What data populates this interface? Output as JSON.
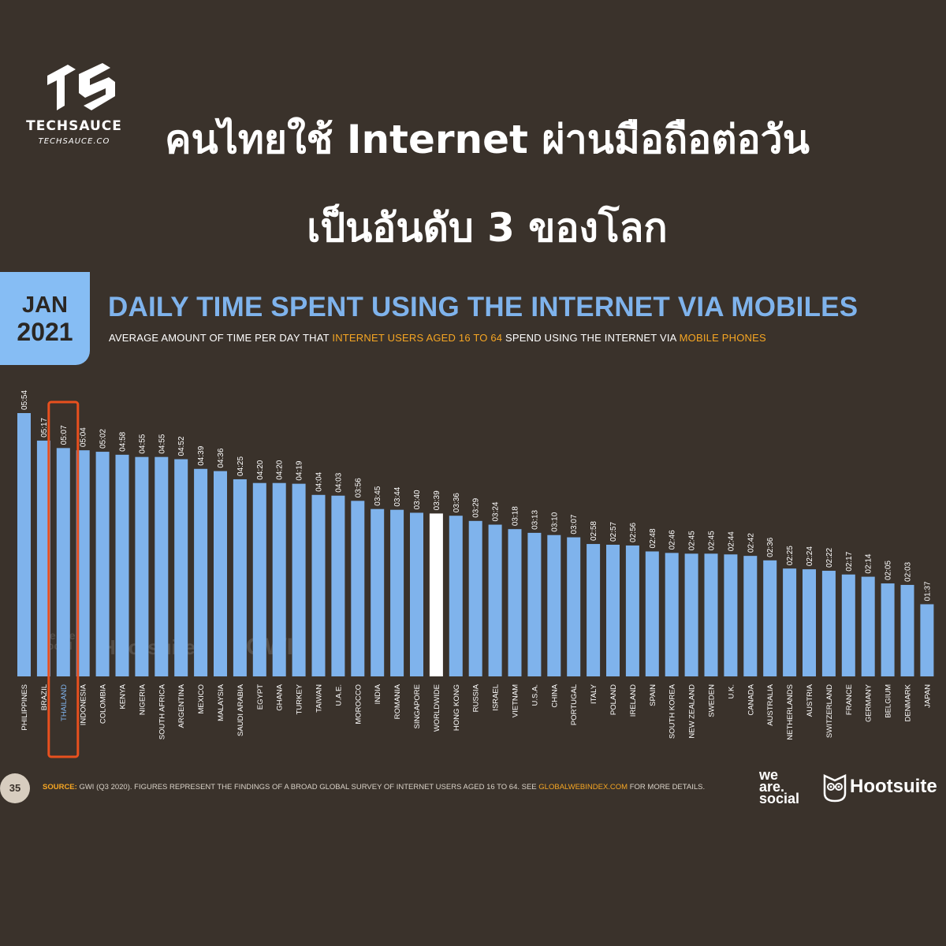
{
  "brand": {
    "name": "TECHSAUCE",
    "url": "TECHSAUCE.CO",
    "logo_icon": "techsauce-ts-logo"
  },
  "headline": {
    "line1": "คนไทยใช้ Internet ผ่านมือถือต่อวัน",
    "line2": "เป็นอันดับ 3 ของโลก"
  },
  "date_badge": {
    "month": "JAN",
    "year": "2021"
  },
  "chart_title": "DAILY TIME SPENT USING THE INTERNET VIA MOBILES",
  "chart_subtitle": {
    "part1": "AVERAGE AMOUNT OF TIME PER DAY THAT ",
    "highlight1": "INTERNET USERS AGED 16 TO 64",
    "part2": " SPEND USING THE INTERNET VIA ",
    "highlight2": "MOBILE PHONES"
  },
  "colors": {
    "background": "#3a322b",
    "bar": "#7fb3ec",
    "worldwide_bar": "#ffffff",
    "highlight_box": "#e8501e",
    "accent": "#f6a623",
    "badge": "#86bdf4"
  },
  "chart_data": {
    "type": "bar",
    "unit": "hh:mm",
    "categories": [
      "PHILIPPINES",
      "BRAZIL",
      "THAILAND",
      "INDONESIA",
      "COLOMBIA",
      "KENYA",
      "NIGERIA",
      "SOUTH AFRICA",
      "ARGENTINA",
      "MEXICO",
      "MALAYSIA",
      "SAUDI ARABIA",
      "EGYPT",
      "GHANA",
      "TURKEY",
      "TAIWAN",
      "U.A.E.",
      "MOROCCO",
      "INDIA",
      "ROMANIA",
      "SINGAPORE",
      "WORLDWIDE",
      "HONG KONG",
      "RUSSIA",
      "ISRAEL",
      "VIETNAM",
      "U.S.A.",
      "CHINA",
      "PORTUGAL",
      "ITALY",
      "POLAND",
      "IRELAND",
      "SPAIN",
      "SOUTH KOREA",
      "NEW ZEALAND",
      "SWEDEN",
      "U.K.",
      "CANADA",
      "AUSTRALIA",
      "NETHERLANDS",
      "AUSTRIA",
      "SWITZERLAND",
      "FRANCE",
      "GERMANY",
      "BELGIUM",
      "DENMARK",
      "JAPAN"
    ],
    "labels": [
      "05:54",
      "05:17",
      "05:07",
      "05:04",
      "05:02",
      "04:58",
      "04:55",
      "04:55",
      "04:52",
      "04:39",
      "04:36",
      "04:25",
      "04:20",
      "04:20",
      "04:19",
      "04:04",
      "04:03",
      "03:56",
      "03:45",
      "03:44",
      "03:40",
      "03:39",
      "03:36",
      "03:29",
      "03:24",
      "03:18",
      "03:13",
      "03:10",
      "03:07",
      "02:58",
      "02:57",
      "02:56",
      "02:48",
      "02:46",
      "02:45",
      "02:45",
      "02:44",
      "02:42",
      "02:36",
      "02:25",
      "02:24",
      "02:22",
      "02:17",
      "02:14",
      "02:05",
      "02:03",
      "01:37"
    ],
    "values_minutes": [
      354,
      317,
      307,
      304,
      302,
      298,
      295,
      295,
      292,
      279,
      276,
      265,
      260,
      260,
      259,
      244,
      243,
      236,
      225,
      224,
      220,
      219,
      216,
      209,
      204,
      198,
      193,
      190,
      187,
      178,
      177,
      176,
      168,
      166,
      165,
      165,
      164,
      162,
      156,
      145,
      144,
      142,
      137,
      134,
      125,
      123,
      97
    ],
    "highlight_category": "THAILAND",
    "reference_category": "WORLDWIDE",
    "title": "DAILY TIME SPENT USING THE INTERNET VIA MOBILES",
    "xlabel": "",
    "ylabel": ""
  },
  "watermark": {
    "we_are_social": "we are social",
    "hootsuite": "Hootsuite",
    "gwi": "GWI."
  },
  "footer": {
    "page_number": "35",
    "source_label": "SOURCE:",
    "source_text": " GWI (Q3 2020). FIGURES REPRESENT THE FINDINGS OF A BROAD GLOBAL SURVEY OF INTERNET USERS AGED 16 TO 64. SEE ",
    "source_link": "GLOBALWEBINDEX.COM",
    "source_tail": " FOR MORE DETAILS."
  },
  "logos": {
    "we_are_social_line1": "we",
    "we_are_social_line2": "are.",
    "we_are_social_line3": "social",
    "hootsuite": "Hootsuite",
    "hootsuite_icon": "owl-icon"
  }
}
